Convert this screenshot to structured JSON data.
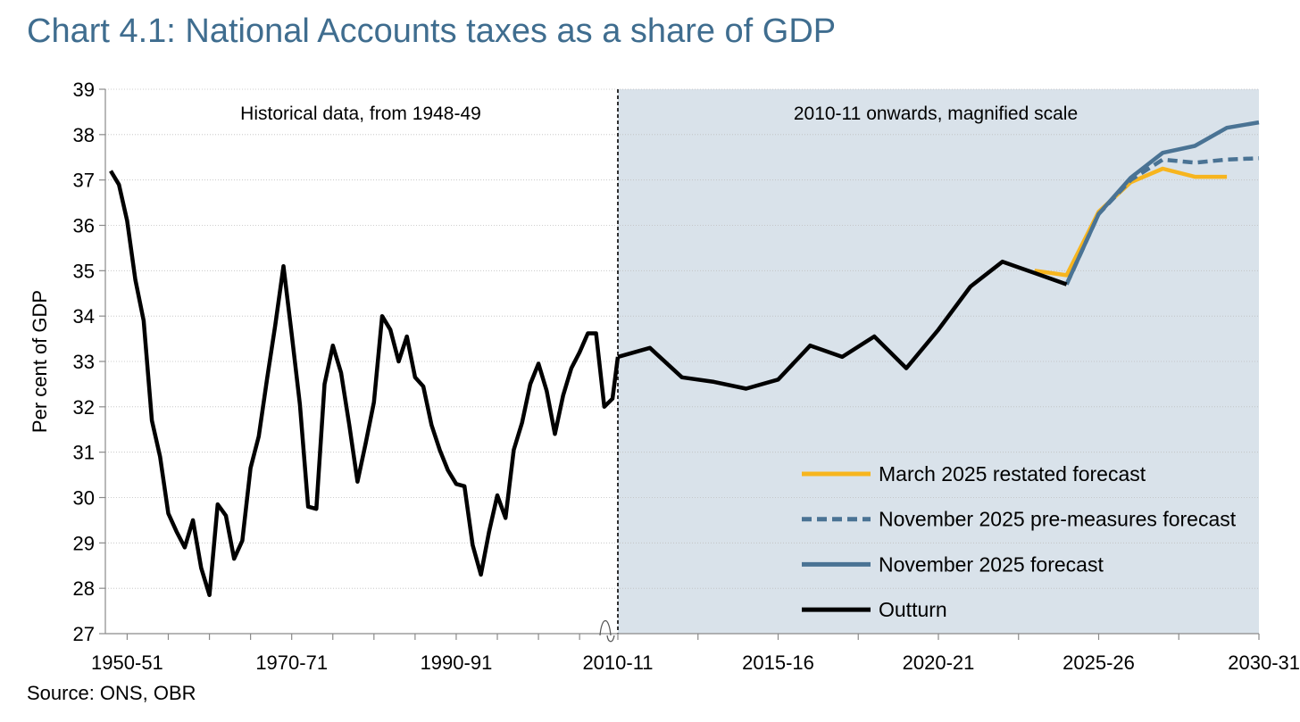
{
  "title": "Chart 4.1: National Accounts taxes as a share of GDP",
  "source": "Source: ONS, OBR",
  "colors": {
    "title": "#3f6d8f",
    "shade": "#d9e2ea",
    "outturn": "#000000",
    "forecast": "#4a7394",
    "premeasures": "#4a7394",
    "march": "#f7b51e"
  },
  "chart_data": {
    "type": "line",
    "title": "Chart 4.1: National Accounts taxes as a share of GDP",
    "ylabel": "Per cent of GDP",
    "xlabel": "",
    "ylim": [
      27,
      39
    ],
    "yticks": [
      27,
      28,
      29,
      30,
      31,
      32,
      33,
      34,
      35,
      36,
      37,
      38,
      39
    ],
    "panels": {
      "historical": {
        "label": "Historical data, from 1948-49",
        "start_year": 1948,
        "end_year": 2009,
        "xticks": [
          {
            "year": 1950,
            "label": "1950-51"
          },
          {
            "year": 1970,
            "label": "1970-71"
          },
          {
            "year": 1990,
            "label": "1990-91"
          }
        ]
      },
      "magnified": {
        "label": "2010-11 onwards, magnified scale",
        "start_year": 2010,
        "end_year": 2030,
        "xticks": [
          {
            "year": 2010,
            "label": "2010-11"
          },
          {
            "year": 2015,
            "label": "2015-16"
          },
          {
            "year": 2020,
            "label": "2020-21"
          },
          {
            "year": 2025,
            "label": "2025-26"
          },
          {
            "year": 2030,
            "label": "2030-31"
          }
        ]
      }
    },
    "series": [
      {
        "name": "Outturn",
        "style": "solid",
        "historical": {
          "x": [
            1948,
            1949,
            1950,
            1951,
            1952,
            1953,
            1954,
            1955,
            1956,
            1957,
            1958,
            1959,
            1960,
            1961,
            1962,
            1963,
            1964,
            1965,
            1966,
            1967,
            1968,
            1969,
            1970,
            1971,
            1972,
            1973,
            1974,
            1975,
            1976,
            1977,
            1978,
            1979,
            1980,
            1981,
            1982,
            1983,
            1984,
            1985,
            1986,
            1987,
            1988,
            1989,
            1990,
            1991,
            1992,
            1993,
            1994,
            1995,
            1996,
            1997,
            1998,
            1999,
            2000,
            2001,
            2002,
            2003,
            2004,
            2005,
            2006,
            2007,
            2008,
            2009
          ],
          "y": [
            37.2,
            36.9,
            36.1,
            34.8,
            33.9,
            31.7,
            30.9,
            29.65,
            29.25,
            28.9,
            29.5,
            28.45,
            27.85,
            29.85,
            29.6,
            28.65,
            29.05,
            30.65,
            31.35,
            32.6,
            33.8,
            35.1,
            33.6,
            32.05,
            29.8,
            29.75,
            32.5,
            33.35,
            32.75,
            31.6,
            30.35,
            31.2,
            32.1,
            34.0,
            33.7,
            33.0,
            33.55,
            32.65,
            32.45,
            31.6,
            31.05,
            30.6,
            30.3,
            30.25,
            28.95,
            28.3,
            29.25,
            30.05,
            29.55,
            31.05,
            31.65,
            32.5,
            32.95,
            32.35,
            31.4,
            32.25,
            32.85,
            33.2,
            33.62,
            33.62,
            32.0,
            32.18
          ]
        },
        "magnified": {
          "x": [
            2010,
            2011,
            2012,
            2013,
            2014,
            2015,
            2016,
            2017,
            2018,
            2019,
            2020,
            2021,
            2022,
            2023,
            2024
          ],
          "y": [
            33.1,
            33.3,
            32.65,
            32.55,
            32.4,
            32.6,
            33.35,
            33.1,
            33.55,
            32.85,
            33.7,
            34.65,
            35.2,
            34.95,
            34.7
          ]
        }
      },
      {
        "name": "November 2025 forecast",
        "style": "solid",
        "x": [
          2024,
          2025,
          2026,
          2027,
          2028,
          2029,
          2030
        ],
        "y": [
          34.7,
          36.25,
          37.05,
          37.6,
          37.75,
          38.15,
          38.27
        ]
      },
      {
        "name": "November 2025 pre-measures forecast",
        "style": "dashed",
        "x": [
          2024,
          2025,
          2026,
          2027,
          2028,
          2029,
          2030
        ],
        "y": [
          34.7,
          36.25,
          37.0,
          37.45,
          37.38,
          37.45,
          37.48
        ]
      },
      {
        "name": "March 2025 restated forecast",
        "style": "solid",
        "x": [
          2023,
          2024,
          2025,
          2026,
          2027,
          2028,
          2029
        ],
        "y": [
          35.0,
          34.9,
          36.3,
          36.95,
          37.25,
          37.07,
          37.07
        ]
      }
    ],
    "legend": {
      "placement": "bottom-right",
      "entries": [
        "March 2025 restated forecast",
        "November 2025 pre-measures forecast",
        "November 2025 forecast",
        "Outturn"
      ]
    }
  }
}
